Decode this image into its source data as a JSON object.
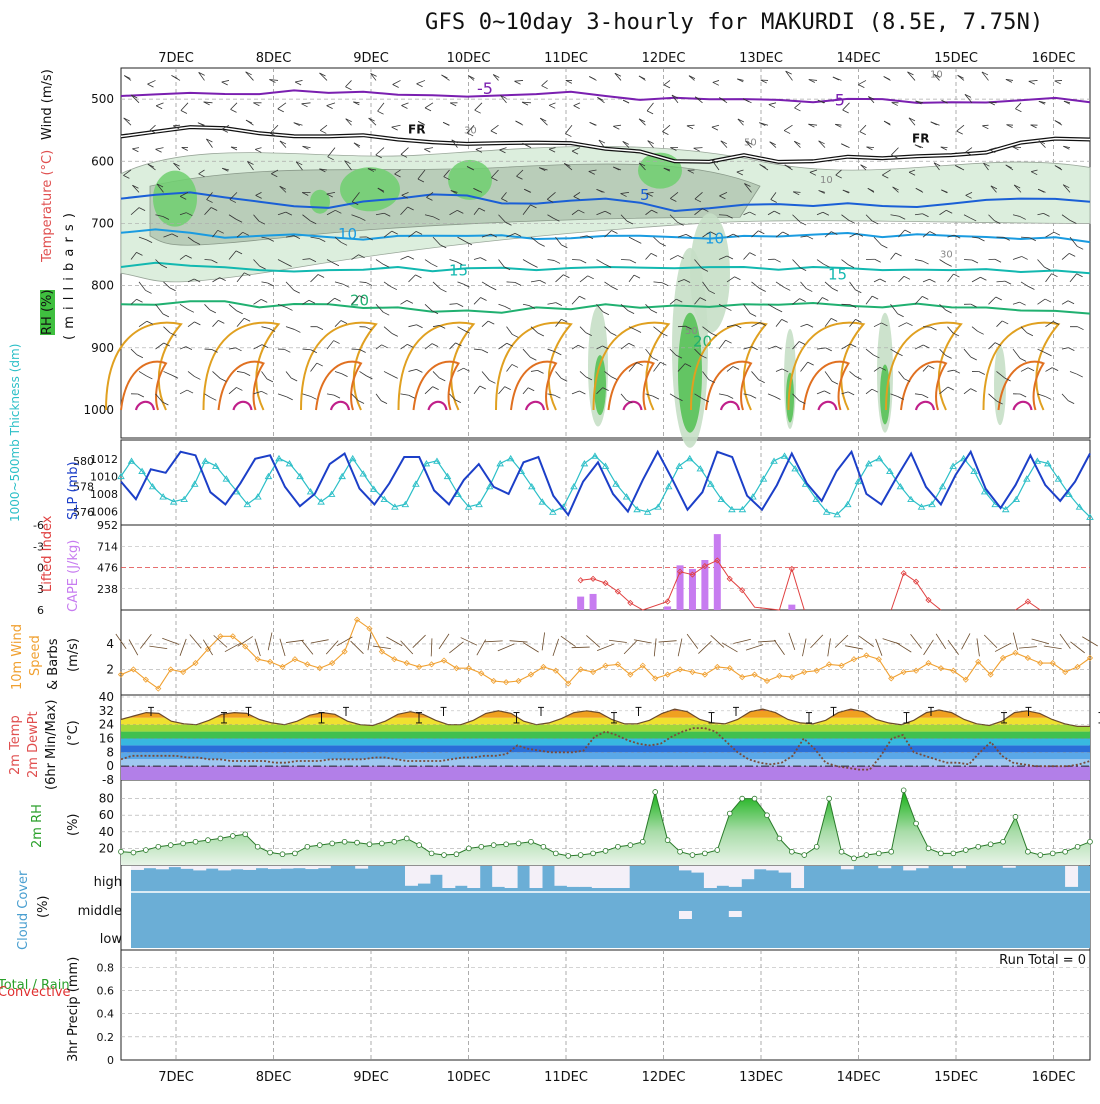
{
  "title": "GFS 0~10day 3-hourly for MAKURDI (8.5E, 7.75N)",
  "dates": [
    "7DEC",
    "8DEC",
    "9DEC",
    "10DEC",
    "11DEC",
    "12DEC",
    "13DEC",
    "14DEC",
    "15DEC",
    "16DEC"
  ],
  "colors": {
    "rh": "#6fcf6f",
    "temp_neg": "#7a1fb0",
    "temp_pos": "#1a5fd6",
    "isotherm_10": "#1a9be0",
    "isotherm_15": "#12b8b0",
    "isotherm_20": "#20b070",
    "isotherm_warm": "#e0a020",
    "slp": "#1c3fc8",
    "thickness": "#2bbfc7",
    "cape": "#c77cf0",
    "lifted": "#e04040",
    "wind10": "#f0a030",
    "rh2m": "#2aa02a",
    "cloud": "#6baed6",
    "precip_label": "#e03030"
  },
  "panels": {
    "upper": {
      "ylabel_wind": "Wind (m/s)",
      "ylabel_temp": "Temperature (°C)",
      "ylabel_rh": "RH (%)",
      "ylabel_p": "( m i l l i b a r s )",
      "yticks": [
        "500",
        "600",
        "700",
        "800",
        "900",
        "1000"
      ],
      "ylim": [
        450,
        1000
      ],
      "freezing_label": "FR",
      "isotherm_labels": {
        "neg5": "-5",
        "pos5": "5",
        "t10": "10",
        "t15": "15",
        "t20": "20",
        "rh30": "30",
        "rh50": "50",
        "rh10": "10"
      },
      "isotherms": [
        {
          "name": "-5",
          "p": [
            495,
            490,
            492,
            490,
            493,
            496,
            492,
            495,
            498,
            500,
            505,
            500,
            505,
            502,
            505
          ]
        },
        {
          "name": "FR",
          "p": [
            560,
            545,
            555,
            560,
            565,
            572,
            570,
            580,
            600,
            590,
            600,
            595,
            590,
            570,
            565
          ]
        },
        {
          "name": "5",
          "p": [
            660,
            650,
            665,
            675,
            660,
            655,
            668,
            660,
            680,
            670,
            672,
            672,
            668,
            660,
            665
          ]
        },
        {
          "name": "10",
          "p": [
            715,
            715,
            720,
            722,
            720,
            720,
            725,
            720,
            722,
            720,
            718,
            722,
            720,
            725,
            730
          ]
        },
        {
          "name": "15",
          "p": [
            770,
            768,
            775,
            775,
            770,
            772,
            775,
            770,
            772,
            770,
            770,
            775,
            775,
            778,
            780
          ]
        },
        {
          "name": "20",
          "p": [
            830,
            825,
            835,
            830,
            835,
            840,
            835,
            830,
            832,
            830,
            828,
            835,
            835,
            840,
            845
          ]
        }
      ]
    },
    "slp_thickness": {
      "ylabel_thick": "1000~500mb Thickness (dm)",
      "ylabel_slp": "SLP (mb)",
      "thick_ticks": [
        "580",
        "578",
        "576"
      ],
      "slp_ticks": [
        "1012",
        "1010",
        "1008",
        "1006"
      ],
      "thickness": [
        578.8,
        580,
        579.2,
        578,
        577.2,
        576.8,
        577,
        578.2,
        580,
        579.6,
        578.6,
        577.6,
        576.6,
        577.2,
        578.8,
        580.2,
        579.8,
        578.8,
        577.6,
        576.8,
        577.4,
        578.8,
        580.2,
        579,
        577.8,
        577,
        576.4,
        576.6,
        578.2,
        579.8,
        580,
        578.8,
        577.4,
        576.4,
        576.6,
        578,
        579.8,
        580.2,
        579.2,
        578,
        576.8,
        576,
        576.4,
        578,
        579.8,
        580.4,
        579.6,
        578.2,
        577.2,
        576.2,
        576,
        576.4,
        578,
        579.6,
        580.2,
        579.4,
        578.2,
        577,
        576.2,
        576.2,
        577.2,
        578.6,
        580,
        580.4,
        579.4,
        578.2,
        577,
        576,
        575.8,
        576.6,
        578.4,
        579.8,
        580.2,
        579.2,
        578,
        577,
        576.4,
        576.6,
        578,
        579.6,
        580.2,
        579.2,
        577.6,
        576.6,
        576.2,
        577,
        578.6,
        580,
        579.8,
        578.6,
        577.4,
        576.4,
        575.6
      ],
      "slp": [
        1009.4,
        1007.4,
        1010.8,
        1010.4,
        1012.8,
        1012.4,
        1008.2,
        1006.8,
        1009.2,
        1012,
        1012.4,
        1008.8,
        1006.6,
        1008,
        1011.4,
        1012.6,
        1008.6,
        1006.8,
        1009.2,
        1012.2,
        1012.2,
        1008.4,
        1006.8,
        1009.6,
        1011.4,
        1008.8,
        1008,
        1011.6,
        1012.2,
        1007.8,
        1005.6,
        1009.4,
        1011.6,
        1008,
        1006,
        1009.6,
        1012.8,
        1009.6,
        1006.2,
        1008.2,
        1012.8,
        1012.2,
        1007.8,
        1006.2,
        1009,
        1012.6,
        1009.2,
        1007.2,
        1010.6,
        1012.8,
        1008,
        1006.8,
        1009.8,
        1012.6,
        1008.8,
        1006.8,
        1010.2,
        1012.8,
        1008.6,
        1006.4,
        1009,
        1012.4,
        1009,
        1007.2,
        1009.4,
        1012.6
      ],
      "slp_stride": 1.4,
      "thick_ylim": [
        575.2,
        581.4
      ],
      "slp_ylim": [
        1004.8,
        1013.8
      ]
    },
    "cape_li": {
      "ylabel_li": "Lifted Index",
      "ylabel_cape": "CAPE (J/kg)",
      "li_ticks": [
        "-6",
        "-3",
        "0",
        "3",
        "6"
      ],
      "cape_ticks": [
        "952",
        "714",
        "476",
        "238"
      ],
      "cape_bars": [
        {
          "i": 37,
          "v": 150
        },
        {
          "i": 38,
          "v": 180
        },
        {
          "i": 44,
          "v": 40
        },
        {
          "i": 45,
          "v": 500
        },
        {
          "i": 46,
          "v": 460
        },
        {
          "i": 47,
          "v": 560
        },
        {
          "i": 48,
          "v": 850
        },
        {
          "i": 54,
          "v": 60
        }
      ],
      "li_line": [
        {
          "i": 37,
          "v": 1.8
        },
        {
          "i": 38,
          "v": 1.6
        },
        {
          "i": 39,
          "v": 2.2
        },
        {
          "i": 40,
          "v": 3.4
        },
        {
          "i": 41,
          "v": 5
        },
        {
          "i": 42,
          "v": 6
        },
        {
          "i": 44,
          "v": 4.8
        },
        {
          "i": 45,
          "v": 0.6
        },
        {
          "i": 46,
          "v": 1
        },
        {
          "i": 47,
          "v": -0.2
        },
        {
          "i": 48,
          "v": -1
        },
        {
          "i": 49,
          "v": 1.6
        },
        {
          "i": 50,
          "v": 3.2
        },
        {
          "i": 51,
          "v": 5.6
        },
        {
          "i": 53,
          "v": 6
        },
        {
          "i": 54,
          "v": 0.2
        },
        {
          "i": 55,
          "v": 6
        },
        {
          "i": 62,
          "v": 6
        },
        {
          "i": 63,
          "v": 0.8
        },
        {
          "i": 64,
          "v": 2
        },
        {
          "i": 65,
          "v": 4.6
        },
        {
          "i": 66,
          "v": 6
        },
        {
          "i": 72,
          "v": 6
        },
        {
          "i": 73,
          "v": 4.8
        },
        {
          "i": 74,
          "v": 6
        }
      ]
    },
    "wind10": {
      "ylabel": "10m Wind Speed & Barbs (m/s)",
      "ylabel_a": "10m Wind",
      "ylabel_b": "Speed",
      "ylabel_c": "& Barbs",
      "ylabel_d": "(m/s)",
      "yticks": [
        "4",
        "2"
      ],
      "ylim": [
        0,
        6.5
      ],
      "speed": [
        1.6,
        2,
        1.2,
        0.5,
        2,
        1.8,
        2.5,
        3.6,
        4.6,
        4.6,
        3.8,
        2.8,
        2.6,
        2.2,
        2.8,
        2.4,
        2.1,
        2.5,
        3.4,
        5.9,
        5.2,
        3.4,
        2.8,
        2.5,
        2.2,
        2.4,
        2.7,
        2.1,
        2.1,
        1.7,
        1.1,
        1,
        1.1,
        1.6,
        2.2,
        1.9,
        0.9,
        2,
        1.8,
        2.3,
        2.4,
        1.6,
        2.3,
        1.3,
        1.6,
        2,
        1.8,
        1.6,
        2.2,
        2.1,
        1.4,
        1.6,
        1.1,
        1.5,
        1.4,
        1.8,
        1.9,
        2.4,
        2.3,
        2.8,
        3.1,
        2.8,
        1.3,
        1.8,
        1.9,
        2.5,
        2.1,
        1.9,
        1.2,
        2.6,
        1.6,
        2.9,
        3.3,
        2.9,
        2.5,
        2.5,
        1.8,
        2.2,
        2.9
      ]
    },
    "temp2m": {
      "ylabel_a": "2m Temp",
      "ylabel_b": "2m DewPt",
      "ylabel_c": "(6hr Min/Max)",
      "ylabel_d": "(°C)",
      "yticks": [
        "40",
        "32",
        "24",
        "16",
        "8",
        "0",
        "-8"
      ],
      "ylim": [
        -8,
        40
      ],
      "temp": [
        27,
        29,
        31,
        30.5,
        26,
        24.5,
        24,
        26.5,
        30,
        31,
        30.5,
        27,
        25,
        24,
        26,
        29.5,
        31,
        30,
        26,
        24,
        23.5,
        26,
        30,
        31.5,
        30,
        26.5,
        24,
        24,
        26.5,
        30.5,
        32,
        30.5,
        26,
        24,
        25,
        27.5,
        31,
        32,
        31,
        27,
        24.5,
        24.5,
        26.5,
        30.5,
        33,
        31.5,
        27,
        25,
        24.5,
        27,
        31.5,
        33,
        31,
        27,
        25,
        24.5,
        26.5,
        31,
        33,
        31.5,
        27,
        25,
        24,
        26.5,
        31,
        32.5,
        31,
        27,
        24.5,
        23.5,
        26,
        31,
        32,
        30.5,
        27,
        24.5,
        23,
        23
      ],
      "dew": [
        4,
        6,
        6,
        6,
        6,
        6,
        5,
        5,
        4,
        4,
        3,
        3,
        3,
        3,
        2,
        2,
        3,
        3,
        3,
        4,
        4,
        4,
        4,
        5,
        5,
        4,
        3,
        3,
        3,
        3,
        4,
        5,
        5,
        6,
        6,
        7,
        12,
        10,
        9,
        8,
        8,
        8,
        9,
        17,
        20,
        18,
        15,
        13,
        12,
        13,
        17,
        20,
        22,
        22,
        20,
        14,
        8,
        4,
        2,
        1,
        2,
        6,
        16,
        10,
        2,
        0,
        -1,
        -2,
        -2,
        6,
        16,
        18,
        8,
        6,
        4,
        2,
        2,
        1,
        8,
        14,
        6,
        2,
        1,
        0,
        0,
        0,
        0,
        1,
        3
      ],
      "dew_stride": 0.93
    },
    "rh2m": {
      "ylabel_a": "2m RH",
      "ylabel_b": "(%)",
      "yticks": [
        "80",
        "60",
        "40",
        "20"
      ],
      "ylim": [
        0,
        100
      ],
      "rh": [
        16,
        15,
        18,
        22,
        24,
        26,
        28,
        30,
        32,
        35,
        37,
        22,
        15,
        13,
        14,
        22,
        24,
        26,
        28,
        27,
        25,
        26,
        28,
        32,
        24,
        14,
        12,
        13,
        20,
        22,
        24,
        25,
        26,
        28,
        22,
        14,
        11,
        12,
        14,
        17,
        22,
        24,
        28,
        88,
        30,
        16,
        12,
        14,
        18,
        62,
        80,
        80,
        60,
        32,
        16,
        12,
        22,
        80,
        16,
        8,
        12,
        14,
        16,
        90,
        50,
        20,
        14,
        14,
        18,
        22,
        25,
        28,
        58,
        16,
        12,
        14,
        16,
        22,
        28
      ]
    },
    "cloud": {
      "ylabel_a": "Cloud Cover",
      "ylabel_b": "(%)",
      "levels": [
        "high",
        "middle",
        "low"
      ],
      "gaps": [
        [
          0,
          0.18
        ],
        [
          1,
          0.1
        ],
        [
          2,
          0.15
        ],
        [
          3,
          0.05
        ],
        [
          4,
          0.13
        ],
        [
          5,
          0.2
        ],
        [
          6,
          0.12
        ],
        [
          7,
          0.2
        ],
        [
          8,
          0.15
        ],
        [
          9,
          0.18
        ],
        [
          10,
          0.1
        ],
        [
          11,
          0.14
        ],
        [
          12,
          0.12
        ],
        [
          13,
          0.1
        ],
        [
          14,
          0.14
        ],
        [
          15,
          0.1
        ],
        [
          18,
          0.12
        ],
        [
          22,
          0.9
        ],
        [
          23,
          0.8
        ],
        [
          24,
          0.4
        ],
        [
          25,
          1
        ],
        [
          26,
          0.9
        ],
        [
          27,
          1
        ],
        [
          29,
          0.95
        ],
        [
          30,
          1
        ],
        [
          32,
          1
        ],
        [
          34,
          0.9
        ],
        [
          35,
          0.95
        ],
        [
          36,
          0.95
        ],
        [
          37,
          1
        ],
        [
          38,
          1
        ],
        [
          39,
          1
        ],
        [
          44,
          0.2
        ],
        [
          45,
          0.3
        ],
        [
          46,
          1
        ],
        [
          47,
          0.9
        ],
        [
          48,
          0.95
        ],
        [
          49,
          0.6
        ],
        [
          50,
          0.15
        ],
        [
          51,
          0.2
        ],
        [
          52,
          0.3
        ],
        [
          53,
          1
        ],
        [
          57,
          0.15
        ],
        [
          60,
          0.1
        ],
        [
          62,
          0.2
        ],
        [
          63,
          0.1
        ],
        [
          66,
          0.1
        ],
        [
          70,
          0.08
        ],
        [
          75,
          0.95
        ]
      ],
      "mid_gaps": [
        [
          44,
          0.15
        ],
        [
          48,
          0.1
        ]
      ]
    },
    "precip": {
      "ylabel_a": "Total / Rain",
      "ylabel_b": "Convective",
      "ylabel_c": "3hr Precip (mm)",
      "yticks": [
        "0.8",
        "0.6",
        "0.4",
        "0.2",
        "0"
      ],
      "run_total": "Run Total = 0"
    }
  }
}
